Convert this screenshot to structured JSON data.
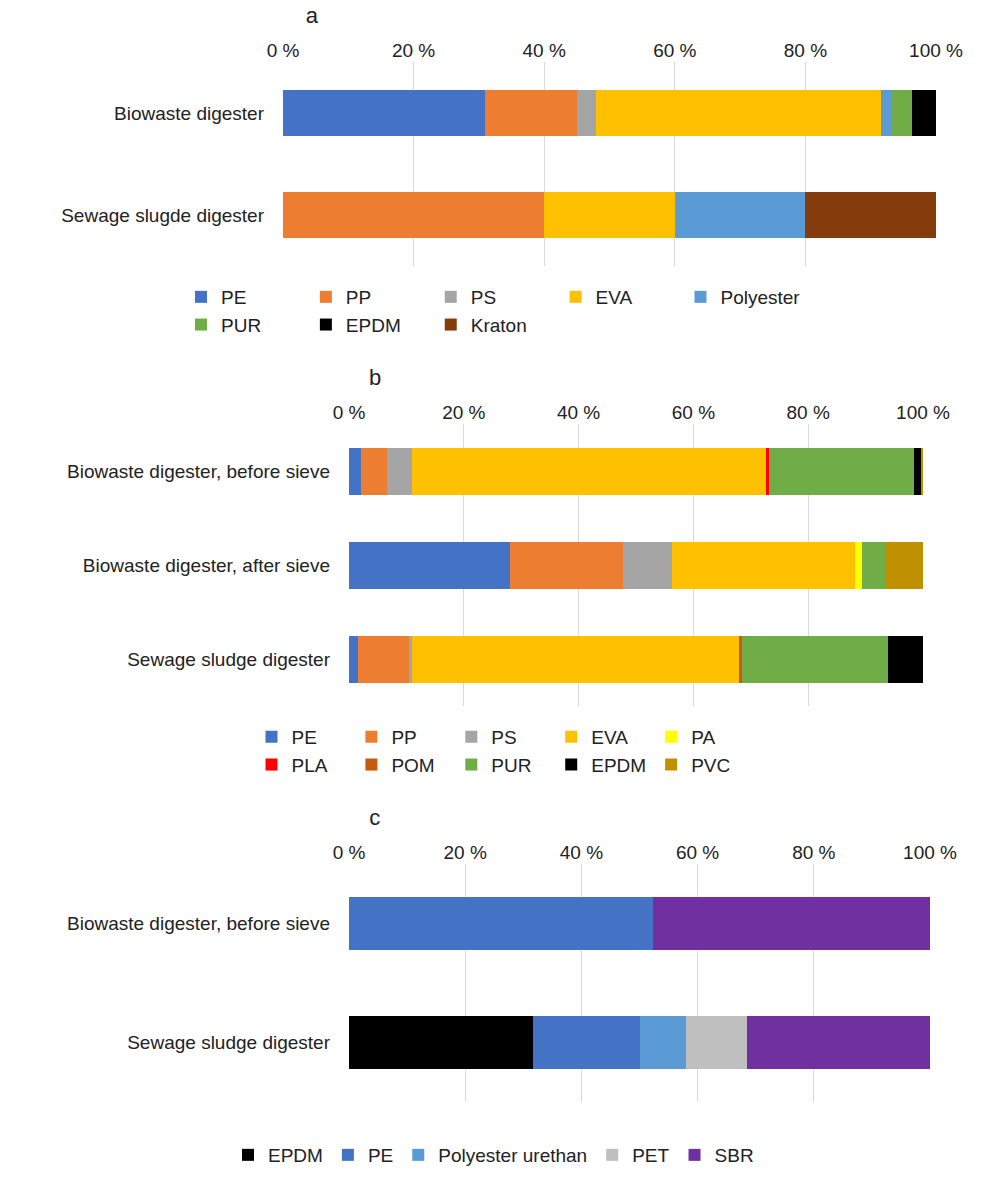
{
  "chart_data": [
    {
      "type": "bar",
      "orientation": "horizontal",
      "stacked": true,
      "title": "a",
      "categories": [
        "Biowaste digester",
        "Sewage slugde digester"
      ],
      "series": [
        {
          "name": "PE",
          "color": "#4472c4",
          "values": [
            31,
            0
          ]
        },
        {
          "name": "PP",
          "color": "#ed7d31",
          "values": [
            14,
            40
          ]
        },
        {
          "name": "PS",
          "color": "#a5a5a5",
          "values": [
            3,
            0
          ]
        },
        {
          "name": "EVA",
          "color": "#ffc000",
          "values": [
            43.5,
            20
          ]
        },
        {
          "name": "Polyester",
          "color": "#5b9bd5",
          "values": [
            1.8,
            20
          ]
        },
        {
          "name": "PUR",
          "color": "#70ad47",
          "values": [
            3,
            0
          ]
        },
        {
          "name": "EPDM",
          "color": "#000000",
          "values": [
            3.7,
            0
          ]
        },
        {
          "name": "Kraton",
          "color": "#843c0c",
          "values": [
            0,
            20
          ]
        }
      ],
      "xlim": [
        0,
        100
      ],
      "xticks": [
        {
          "value": 0,
          "label": "0 %"
        },
        {
          "value": 20,
          "label": "20 %"
        },
        {
          "value": 40,
          "label": "40 %"
        },
        {
          "value": 60,
          "label": "60 %"
        },
        {
          "value": 80,
          "label": "80 %"
        },
        {
          "value": 100,
          "label": "100 %"
        }
      ],
      "grid": true,
      "legend": "bottom"
    },
    {
      "type": "bar",
      "orientation": "horizontal",
      "stacked": true,
      "title": "b",
      "categories": [
        "Biowaste digester, before sieve",
        "Biowaste digester, after sieve",
        "Sewage sludge digester"
      ],
      "series": [
        {
          "name": "PE",
          "color": "#4472c4",
          "values": [
            2.1,
            28,
            1.6
          ]
        },
        {
          "name": "PP",
          "color": "#ed7d31",
          "values": [
            4.5,
            19.7,
            8.9
          ]
        },
        {
          "name": "PS",
          "color": "#a5a5a5",
          "values": [
            4.4,
            8.5,
            0.5
          ]
        },
        {
          "name": "EVA",
          "color": "#ffc000",
          "values": [
            61.7,
            31.9,
            57
          ]
        },
        {
          "name": "PA",
          "color": "#ffff00",
          "values": [
            0,
            1.2,
            0
          ]
        },
        {
          "name": "PLA",
          "color": "#ff0000",
          "values": [
            0.4,
            0,
            0
          ]
        },
        {
          "name": "POM",
          "color": "#c55a11",
          "values": [
            0,
            0,
            0.5
          ]
        },
        {
          "name": "PUR",
          "color": "#70ad47",
          "values": [
            25.4,
            4.2,
            25.4
          ]
        },
        {
          "name": "EPDM",
          "color": "#000000",
          "values": [
            1.2,
            0,
            6.1
          ]
        },
        {
          "name": "PVC",
          "color": "#bf9000",
          "values": [
            0.3,
            6.5,
            0
          ]
        }
      ],
      "xlim": [
        0,
        100
      ],
      "xticks": [
        {
          "value": 0,
          "label": "0 %"
        },
        {
          "value": 20,
          "label": "20 %"
        },
        {
          "value": 40,
          "label": "40 %"
        },
        {
          "value": 60,
          "label": "60 %"
        },
        {
          "value": 80,
          "label": "80 %"
        },
        {
          "value": 100,
          "label": "100 %"
        }
      ],
      "grid": true,
      "legend": "bottom"
    },
    {
      "type": "bar",
      "orientation": "horizontal",
      "stacked": true,
      "title": "c",
      "categories": [
        "Biowaste digester, before sieve",
        "Sewage sludge digester"
      ],
      "series": [
        {
          "name": "EPDM",
          "color": "#000000",
          "values": [
            0,
            31.7
          ]
        },
        {
          "name": "PE",
          "color": "#4472c4",
          "values": [
            52.3,
            18.4
          ]
        },
        {
          "name": "Polyester urethan",
          "color": "#5b9bd5",
          "values": [
            0,
            7.9
          ]
        },
        {
          "name": "PET",
          "color": "#bfbfbf",
          "values": [
            0,
            10.5
          ]
        },
        {
          "name": "SBR",
          "color": "#7030a0",
          "values": [
            47.7,
            31.5
          ]
        }
      ],
      "xlim": [
        0,
        100
      ],
      "xticks": [
        {
          "value": 0,
          "label": "0 %"
        },
        {
          "value": 20,
          "label": "20 %"
        },
        {
          "value": 40,
          "label": "40 %"
        },
        {
          "value": 60,
          "label": "60 %"
        },
        {
          "value": 80,
          "label": "80 %"
        },
        {
          "value": 100,
          "label": "100 %"
        }
      ],
      "grid": true,
      "legend": "bottom"
    }
  ]
}
